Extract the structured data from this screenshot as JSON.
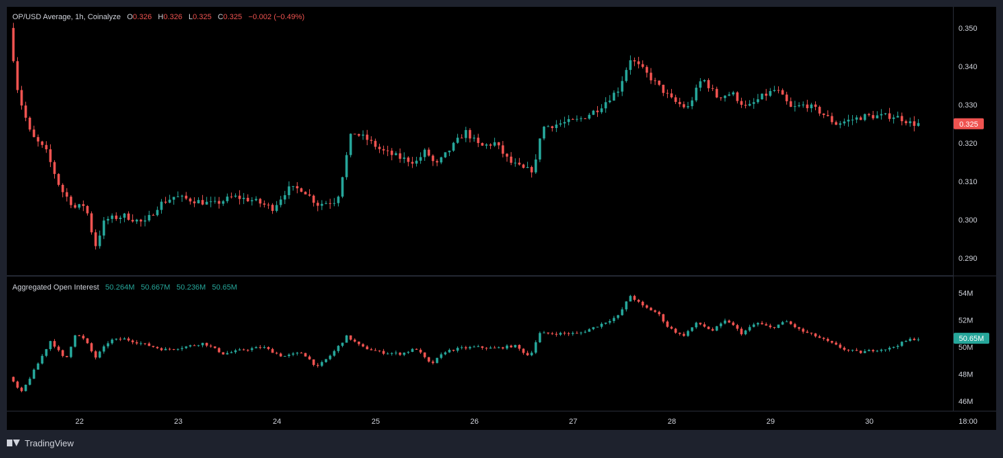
{
  "colors": {
    "up": "#26a69a",
    "down": "#ef5350",
    "background": "#000000",
    "frame": "#1e222d",
    "text": "#d1d4dc",
    "separator": "#2a2e39"
  },
  "price_pane": {
    "symbol_label": "OP/USD Average, 1h, Coinalyze",
    "o_key": "O",
    "o_val": "0.326",
    "h_key": "H",
    "h_val": "0.326",
    "l_key": "L",
    "l_val": "0.325",
    "c_key": "C",
    "c_val": "0.325",
    "change": "−0.002 (−0.49%)",
    "last_value_tag": "0.325"
  },
  "oi_pane": {
    "label": "Aggregated Open Interest",
    "values": [
      "50.264M",
      "50.667M",
      "50.236M",
      "50.65M"
    ],
    "last_value_tag": "50.65M"
  },
  "footer": {
    "brand": "TradingView"
  },
  "chart_data": [
    {
      "type": "candlestick",
      "title": "OP/USD Average, 1h, Coinalyze",
      "x_ticks": [
        "22",
        "23",
        "24",
        "25",
        "26",
        "27",
        "28",
        "29",
        "30",
        "18:00"
      ],
      "y_ticks": [
        "0.350",
        "0.340",
        "0.330",
        "0.320",
        "0.310",
        "0.300",
        "0.290"
      ],
      "ylim": [
        0.2855,
        0.3555
      ],
      "x_start": 21.33,
      "x_end": 30.5,
      "keypoints": [
        [
          21.33,
          0.35
        ],
        [
          21.42,
          0.333
        ],
        [
          21.55,
          0.322
        ],
        [
          21.7,
          0.318
        ],
        [
          21.85,
          0.308
        ],
        [
          22.0,
          0.303
        ],
        [
          22.1,
          0.304
        ],
        [
          22.2,
          0.293
        ],
        [
          22.3,
          0.3
        ],
        [
          22.5,
          0.301
        ],
        [
          22.7,
          0.299
        ],
        [
          22.85,
          0.304
        ],
        [
          23.0,
          0.306
        ],
        [
          23.2,
          0.305
        ],
        [
          23.4,
          0.304
        ],
        [
          23.6,
          0.306
        ],
        [
          23.8,
          0.305
        ],
        [
          24.0,
          0.303
        ],
        [
          24.15,
          0.308
        ],
        [
          24.3,
          0.308
        ],
        [
          24.45,
          0.304
        ],
        [
          24.65,
          0.305
        ],
        [
          24.8,
          0.323
        ],
        [
          24.95,
          0.321
        ],
        [
          25.1,
          0.318
        ],
        [
          25.3,
          0.316
        ],
        [
          25.45,
          0.315
        ],
        [
          25.55,
          0.318
        ],
        [
          25.65,
          0.314
        ],
        [
          25.75,
          0.317
        ],
        [
          25.95,
          0.323
        ],
        [
          26.1,
          0.319
        ],
        [
          26.25,
          0.32
        ],
        [
          26.4,
          0.315
        ],
        [
          26.55,
          0.313
        ],
        [
          26.65,
          0.313
        ],
        [
          26.72,
          0.324
        ],
        [
          26.9,
          0.325
        ],
        [
          27.1,
          0.326
        ],
        [
          27.3,
          0.329
        ],
        [
          27.5,
          0.334
        ],
        [
          27.62,
          0.342
        ],
        [
          27.75,
          0.339
        ],
        [
          27.9,
          0.335
        ],
        [
          28.05,
          0.331
        ],
        [
          28.2,
          0.329
        ],
        [
          28.35,
          0.337
        ],
        [
          28.5,
          0.332
        ],
        [
          28.65,
          0.333
        ],
        [
          28.8,
          0.329
        ],
        [
          28.95,
          0.332
        ],
        [
          29.1,
          0.334
        ],
        [
          29.25,
          0.329
        ],
        [
          29.4,
          0.33
        ],
        [
          29.55,
          0.328
        ],
        [
          29.7,
          0.325
        ],
        [
          29.85,
          0.326
        ],
        [
          30.0,
          0.327
        ],
        [
          30.15,
          0.327
        ],
        [
          30.3,
          0.327
        ],
        [
          30.4,
          0.326
        ],
        [
          30.47,
          0.325
        ]
      ]
    },
    {
      "type": "candlestick",
      "title": "Aggregated Open Interest",
      "y_ticks": [
        "54M",
        "52M",
        "50M",
        "48M",
        "46M"
      ],
      "ylim": [
        45.3,
        55.2
      ],
      "x_start": 21.33,
      "x_end": 30.5,
      "keypoints": [
        [
          21.33,
          47.8
        ],
        [
          21.45,
          46.6
        ],
        [
          21.6,
          48.5
        ],
        [
          21.75,
          50.5
        ],
        [
          21.9,
          49.0
        ],
        [
          22.0,
          51.0
        ],
        [
          22.1,
          50.5
        ],
        [
          22.2,
          49.2
        ],
        [
          22.35,
          50.5
        ],
        [
          22.5,
          50.6
        ],
        [
          22.7,
          50.2
        ],
        [
          22.9,
          49.8
        ],
        [
          23.1,
          50.0
        ],
        [
          23.3,
          50.3
        ],
        [
          23.5,
          49.5
        ],
        [
          23.7,
          49.8
        ],
        [
          23.9,
          50.0
        ],
        [
          24.1,
          49.3
        ],
        [
          24.3,
          49.6
        ],
        [
          24.45,
          48.5
        ],
        [
          24.6,
          49.5
        ],
        [
          24.75,
          50.8
        ],
        [
          24.9,
          50.0
        ],
        [
          25.1,
          49.6
        ],
        [
          25.3,
          49.5
        ],
        [
          25.45,
          49.9
        ],
        [
          25.6,
          48.7
        ],
        [
          25.75,
          49.7
        ],
        [
          25.9,
          49.9
        ],
        [
          26.05,
          50.0
        ],
        [
          26.25,
          49.9
        ],
        [
          26.45,
          50.1
        ],
        [
          26.6,
          49.3
        ],
        [
          26.7,
          51.0
        ],
        [
          26.9,
          51.0
        ],
        [
          27.1,
          51.0
        ],
        [
          27.3,
          51.6
        ],
        [
          27.5,
          52.3
        ],
        [
          27.62,
          53.8
        ],
        [
          27.75,
          53.0
        ],
        [
          27.9,
          52.5
        ],
        [
          28.0,
          51.5
        ],
        [
          28.15,
          50.8
        ],
        [
          28.3,
          51.8
        ],
        [
          28.45,
          51.2
        ],
        [
          28.6,
          52.0
        ],
        [
          28.75,
          51.0
        ],
        [
          28.9,
          51.8
        ],
        [
          29.05,
          51.4
        ],
        [
          29.2,
          51.9
        ],
        [
          29.35,
          51.2
        ],
        [
          29.5,
          50.8
        ],
        [
          29.65,
          50.3
        ],
        [
          29.8,
          49.8
        ],
        [
          29.95,
          49.6
        ],
        [
          30.1,
          49.8
        ],
        [
          30.25,
          49.9
        ],
        [
          30.4,
          50.4
        ],
        [
          30.47,
          50.6
        ]
      ]
    }
  ]
}
